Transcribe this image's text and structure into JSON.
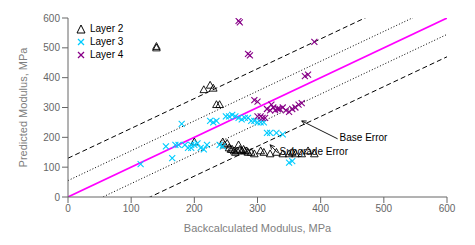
{
  "chart_data": {
    "type": "scatter",
    "xlabel": "Backcalculated Modulus, MPa",
    "ylabel": "Predicted Modulus, MPa",
    "xlim": [
      0,
      600
    ],
    "ylim": [
      0,
      600
    ],
    "xticks": [
      0,
      100,
      200,
      300,
      400,
      500,
      600
    ],
    "yticks": [
      0,
      100,
      200,
      300,
      400,
      500,
      600
    ],
    "grid": false,
    "legend": "upper left",
    "series": [
      {
        "name": "Layer 2",
        "color": "#000000",
        "marker": "triangle",
        "x": [
          140,
          140,
          200,
          215,
          225,
          230,
          235,
          240,
          245,
          248,
          252,
          255,
          258,
          260,
          263,
          265,
          268,
          270,
          272,
          275,
          278,
          280,
          283,
          285,
          290,
          295,
          305,
          310,
          320,
          330,
          340,
          350,
          355,
          360,
          370,
          380,
          390
        ],
        "values": [
          500,
          505,
          185,
          360,
          375,
          365,
          310,
          310,
          185,
          175,
          180,
          165,
          160,
          160,
          155,
          150,
          155,
          175,
          160,
          155,
          160,
          155,
          155,
          150,
          150,
          145,
          155,
          150,
          145,
          150,
          145,
          145,
          150,
          145,
          145,
          155,
          145
        ]
      },
      {
        "name": "Layer 3",
        "color": "#00ccff",
        "marker": "x",
        "x": [
          115,
          155,
          165,
          170,
          175,
          180,
          185,
          190,
          195,
          195,
          200,
          205,
          210,
          215,
          220,
          225,
          230,
          235,
          240,
          245,
          250,
          255,
          260,
          265,
          270,
          275,
          280,
          285,
          290,
          295,
          300,
          305,
          310,
          315,
          320,
          330,
          340,
          350,
          355
        ],
        "values": [
          110,
          170,
          130,
          175,
          175,
          245,
          175,
          165,
          165,
          175,
          175,
          180,
          165,
          160,
          175,
          255,
          250,
          255,
          175,
          170,
          270,
          270,
          275,
          270,
          265,
          260,
          265,
          265,
          255,
          255,
          250,
          250,
          250,
          215,
          215,
          215,
          210,
          115,
          120
        ]
      },
      {
        "name": "Layer 4",
        "color": "#880088",
        "marker": "x",
        "x": [
          270,
          272,
          285,
          288,
          295,
          300,
          300,
          305,
          308,
          312,
          315,
          320,
          322,
          325,
          328,
          332,
          335,
          340,
          345,
          350,
          355,
          360,
          365,
          370,
          375,
          380,
          390
        ],
        "values": [
          590,
          585,
          480,
          475,
          325,
          320,
          270,
          270,
          265,
          265,
          295,
          290,
          310,
          300,
          290,
          295,
          295,
          300,
          290,
          285,
          295,
          300,
          310,
          315,
          405,
          410,
          520
        ]
      }
    ],
    "reference_lines": [
      {
        "slope": 1,
        "intercept": 0,
        "color": "#ff00ff",
        "line_style": "solid"
      },
      {
        "slope": 1,
        "intercept": 55,
        "color": "#000000",
        "line_style": "dotted"
      },
      {
        "slope": 1,
        "intercept": -55,
        "color": "#000000",
        "line_style": "dotted"
      },
      {
        "slope": 1,
        "intercept": 130,
        "color": "#000000",
        "line_style": "dashed"
      },
      {
        "slope": 1,
        "intercept": -130,
        "color": "#000000",
        "line_style": "dashed"
      }
    ],
    "annotations": [
      {
        "text": "Base Error",
        "xy": [
          370,
          255
        ],
        "xytext": [
          430,
          195
        ]
      },
      {
        "text": "Subgrade Error",
        "xy": [
          320,
          175
        ],
        "xytext": [
          335,
          148
        ]
      }
    ]
  }
}
